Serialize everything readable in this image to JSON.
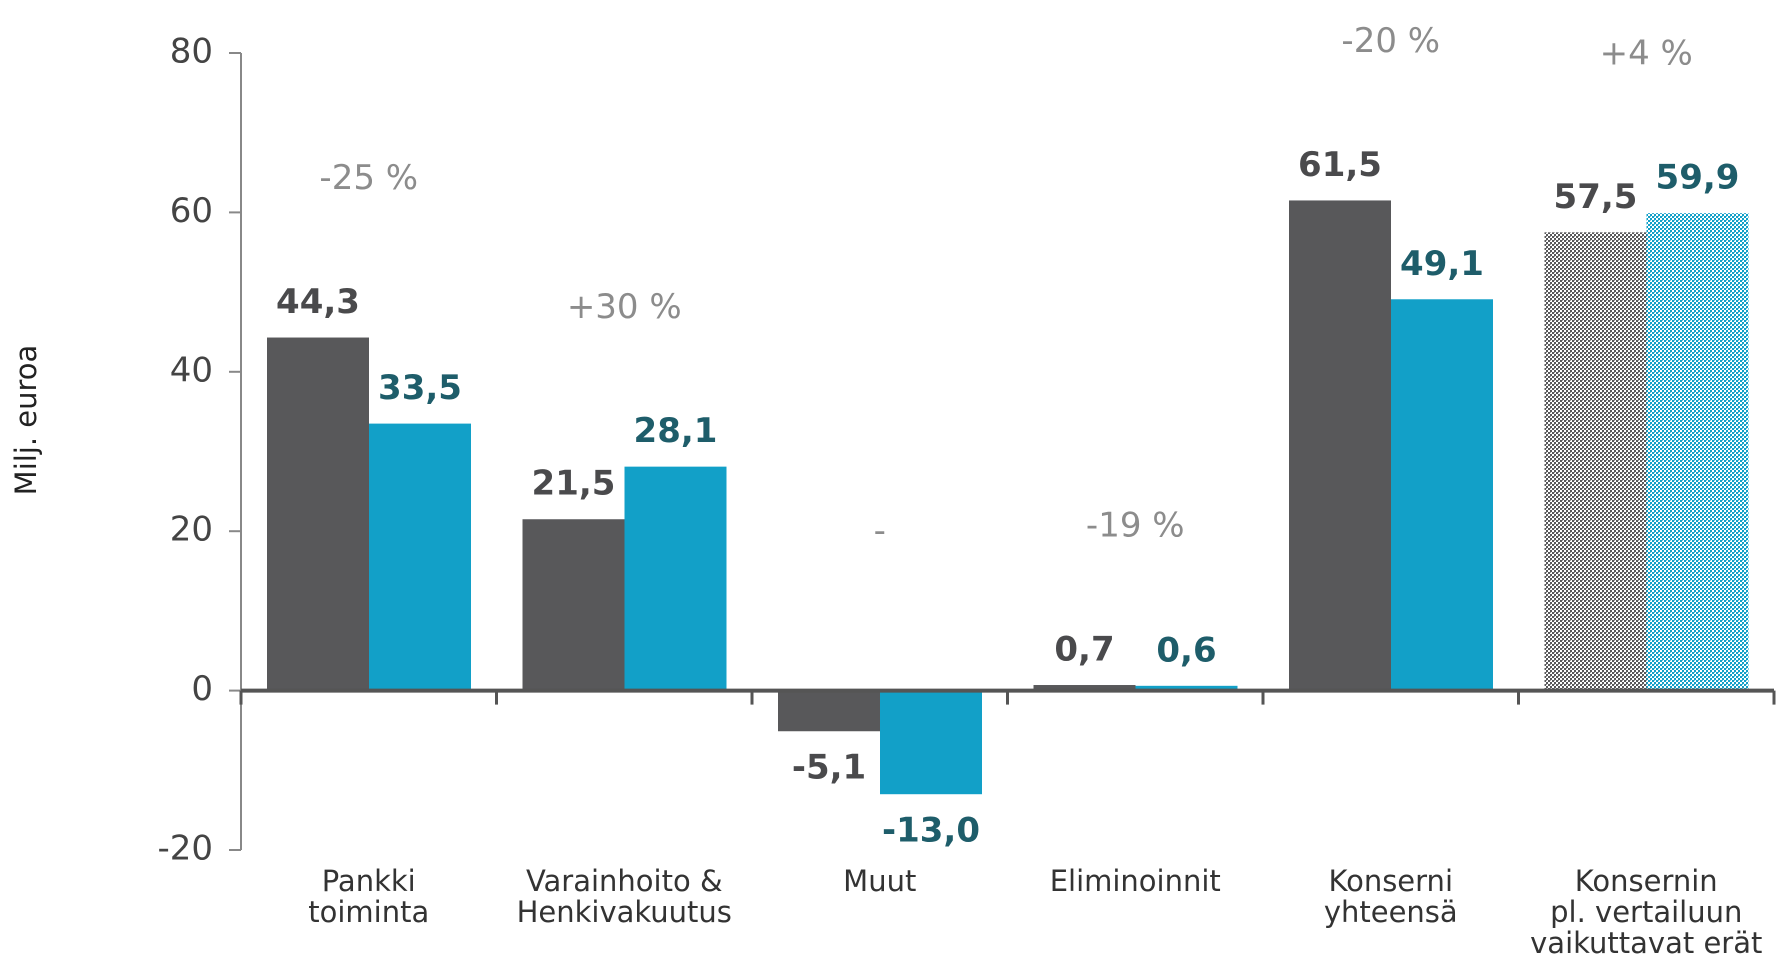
{
  "chart_data": {
    "type": "bar",
    "y_label": "Milj. euroa",
    "categories": [
      "Pankki\ntoiminta",
      "Varainhoito &\nHenkivakuutus",
      "Muut",
      "Eliminoinnit",
      "Konserni\nyhteensä",
      "Konsernin\npl. vertailuun\nvaikuttavat erät"
    ],
    "annotations": [
      "-25 %",
      "+30 %",
      "-",
      "-19 %",
      "-20 %",
      "+4 %"
    ],
    "hatched": [
      false,
      false,
      false,
      false,
      false,
      true
    ],
    "series": [
      {
        "color": "#58585a",
        "label_color": "#4a4a4c",
        "values": [
          44.3,
          21.5,
          -5.1,
          0.7,
          61.5,
          57.5
        ],
        "value_labels": [
          "44,3",
          "21,5",
          "-5,1",
          "0,7",
          "61,5",
          "57,5"
        ]
      },
      {
        "color": "#12a0c8",
        "label_color": "#1e5d6a",
        "values": [
          33.5,
          28.1,
          -13.0,
          0.6,
          49.1,
          59.9
        ],
        "value_labels": [
          "33,5",
          "28,1",
          "-13,0",
          "0,6",
          "49,1",
          "59,9"
        ]
      }
    ],
    "ylim": [
      -20,
      80
    ],
    "yticks": [
      -20,
      0,
      20,
      40,
      60,
      80
    ]
  }
}
